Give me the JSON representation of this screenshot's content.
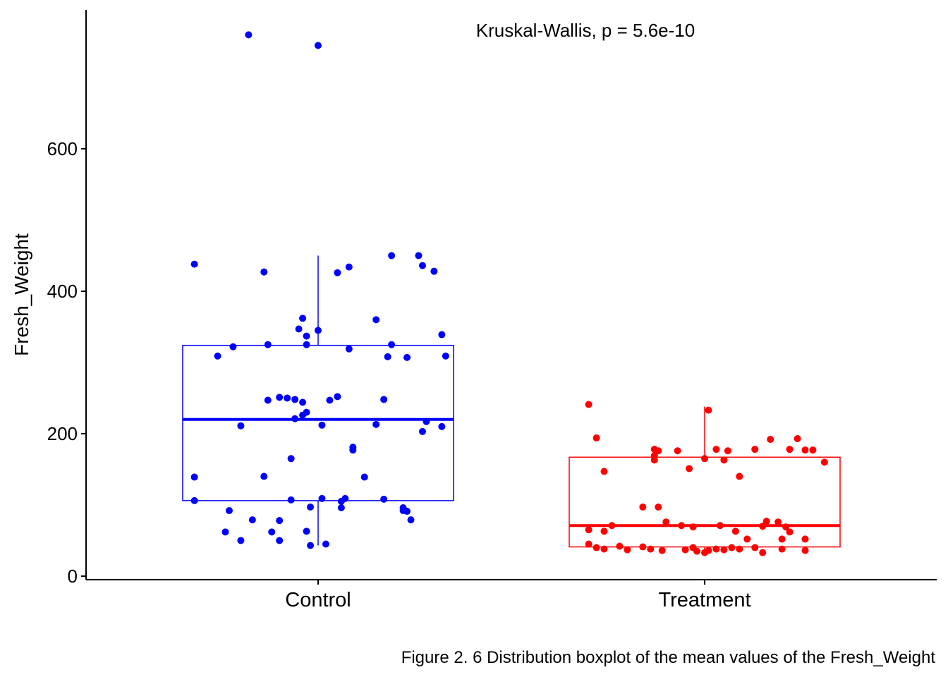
{
  "chart_data": {
    "type": "boxplot",
    "title": "",
    "xlabel": "",
    "ylabel": "Fresh_Weight",
    "ylim": [
      -5,
      795
    ],
    "y_ticks": [
      "0",
      "200",
      "400",
      "600"
    ],
    "y_tick_values": [
      0,
      200,
      400,
      600
    ],
    "categories": [
      "Control",
      "Treatment"
    ],
    "annotation": "Kruskal-Wallis, p = 5.6e-10",
    "caption": "Figure 2. 6 Distribution boxplot of the mean values of the Fresh_Weight",
    "grid": false,
    "legend": "none",
    "series": [
      {
        "category": "Control",
        "color": "#0000ff",
        "box": {
          "lower_whisker": 43,
          "q1": 106,
          "median": 220,
          "q3": 324,
          "upper_whisker": 450
        },
        "points": [
          [
            -0.18,
            760
          ],
          [
            0.0,
            745
          ],
          [
            -0.32,
            438
          ],
          [
            -0.14,
            427
          ],
          [
            0.08,
            434
          ],
          [
            0.05,
            426
          ],
          [
            0.19,
            450
          ],
          [
            0.26,
            450
          ],
          [
            0.27,
            436
          ],
          [
            0.3,
            428
          ],
          [
            0.15,
            360
          ],
          [
            -0.04,
            362
          ],
          [
            -0.05,
            347
          ],
          [
            0.0,
            345
          ],
          [
            -0.03,
            337
          ],
          [
            0.32,
            339
          ],
          [
            -0.22,
            322
          ],
          [
            -0.13,
            325
          ],
          [
            -0.03,
            325
          ],
          [
            0.08,
            319
          ],
          [
            0.19,
            325
          ],
          [
            -0.26,
            309
          ],
          [
            0.18,
            308
          ],
          [
            0.23,
            307
          ],
          [
            0.33,
            309
          ],
          [
            -0.13,
            247
          ],
          [
            -0.1,
            251
          ],
          [
            -0.08,
            250
          ],
          [
            -0.06,
            248
          ],
          [
            -0.04,
            244
          ],
          [
            0.03,
            247
          ],
          [
            0.05,
            252
          ],
          [
            0.17,
            248
          ],
          [
            -0.06,
            221
          ],
          [
            -0.04,
            226
          ],
          [
            -0.03,
            230
          ],
          [
            0.28,
            217
          ],
          [
            0.32,
            210
          ],
          [
            -0.2,
            211
          ],
          [
            0.01,
            212
          ],
          [
            0.15,
            213
          ],
          [
            0.27,
            203
          ],
          [
            0.09,
            181
          ],
          [
            0.09,
            177
          ],
          [
            -0.07,
            165
          ],
          [
            -0.32,
            139
          ],
          [
            -0.14,
            140
          ],
          [
            0.12,
            139
          ],
          [
            -0.32,
            106
          ],
          [
            -0.07,
            107
          ],
          [
            0.01,
            109
          ],
          [
            0.06,
            105
          ],
          [
            0.07,
            109
          ],
          [
            0.17,
            108
          ],
          [
            -0.02,
            97
          ],
          [
            0.06,
            96
          ],
          [
            0.22,
            96
          ],
          [
            0.22,
            92
          ],
          [
            0.23,
            91
          ],
          [
            -0.23,
            92
          ],
          [
            -0.17,
            79
          ],
          [
            -0.1,
            78
          ],
          [
            0.24,
            79
          ],
          [
            -0.24,
            62
          ],
          [
            -0.12,
            62
          ],
          [
            -0.03,
            63
          ],
          [
            -0.2,
            50
          ],
          [
            -0.1,
            50
          ],
          [
            -0.02,
            43
          ],
          [
            0.02,
            45
          ]
        ]
      },
      {
        "category": "Treatment",
        "color": "#ff0000",
        "box": {
          "lower_whisker": 33,
          "q1": 41,
          "median": 71,
          "q3": 167,
          "upper_whisker": 238
        },
        "points": [
          [
            -0.3,
            241
          ],
          [
            0.01,
            233
          ],
          [
            -0.28,
            194
          ],
          [
            -0.13,
            178
          ],
          [
            -0.12,
            176
          ],
          [
            -0.07,
            176
          ],
          [
            0.03,
            178
          ],
          [
            0.06,
            176
          ],
          [
            0.13,
            178
          ],
          [
            0.17,
            192
          ],
          [
            0.22,
            178
          ],
          [
            0.24,
            193
          ],
          [
            0.26,
            177
          ],
          [
            0.28,
            177
          ],
          [
            -0.13,
            169
          ],
          [
            -0.13,
            163
          ],
          [
            0.0,
            165
          ],
          [
            -0.26,
            147
          ],
          [
            -0.04,
            151
          ],
          [
            0.05,
            163
          ],
          [
            0.31,
            160
          ],
          [
            -0.16,
            97
          ],
          [
            -0.12,
            97
          ],
          [
            0.09,
            140
          ],
          [
            -0.1,
            76
          ],
          [
            -0.06,
            71
          ],
          [
            -0.03,
            69
          ],
          [
            0.04,
            71
          ],
          [
            0.15,
            70
          ],
          [
            0.16,
            77
          ],
          [
            0.19,
            76
          ],
          [
            0.21,
            69
          ],
          [
            0.22,
            62
          ],
          [
            -0.3,
            65
          ],
          [
            -0.26,
            63
          ],
          [
            -0.24,
            71
          ],
          [
            0.08,
            63
          ],
          [
            0.11,
            52
          ],
          [
            0.2,
            52
          ],
          [
            0.26,
            52
          ],
          [
            -0.3,
            45
          ],
          [
            -0.28,
            40
          ],
          [
            -0.26,
            38
          ],
          [
            -0.22,
            42
          ],
          [
            -0.2,
            37
          ],
          [
            -0.16,
            41
          ],
          [
            -0.14,
            38
          ],
          [
            -0.11,
            36
          ],
          [
            -0.05,
            37
          ],
          [
            -0.03,
            40
          ],
          [
            -0.02,
            35
          ],
          [
            0.0,
            33
          ],
          [
            0.01,
            36
          ],
          [
            0.03,
            38
          ],
          [
            0.05,
            37
          ],
          [
            0.07,
            40
          ],
          [
            0.09,
            38
          ],
          [
            0.13,
            40
          ],
          [
            0.15,
            33
          ],
          [
            0.2,
            38
          ],
          [
            0.26,
            36
          ]
        ]
      }
    ]
  }
}
